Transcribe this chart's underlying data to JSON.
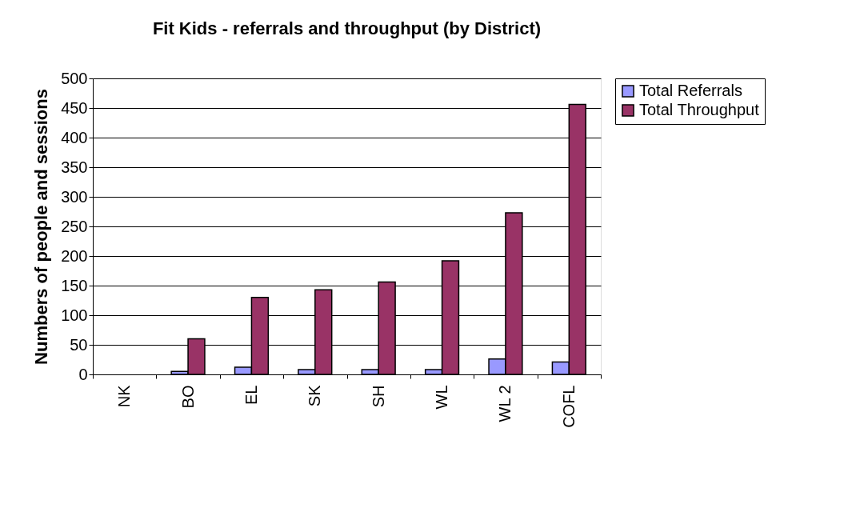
{
  "chart_data": {
    "type": "bar",
    "title": "Fit Kids - referrals and throughput (by District)",
    "ylabel": "Numbers of people and sessions",
    "categories": [
      "NK",
      "BO",
      "EL",
      "SK",
      "SH",
      "WL",
      "WL 2",
      "COFL"
    ],
    "series": [
      {
        "name": "Total Referrals",
        "color": "#9999ff",
        "values": [
          null,
          5,
          12,
          8,
          8,
          8,
          26,
          21
        ]
      },
      {
        "name": "Total Throughput",
        "color": "#993366",
        "values": [
          null,
          60,
          130,
          143,
          156,
          192,
          273,
          456
        ]
      }
    ],
    "ylim": [
      0,
      500
    ],
    "yticks": [
      0,
      50,
      100,
      150,
      200,
      250,
      300,
      350,
      400,
      450,
      500
    ],
    "grid": "y",
    "legend": "right"
  }
}
